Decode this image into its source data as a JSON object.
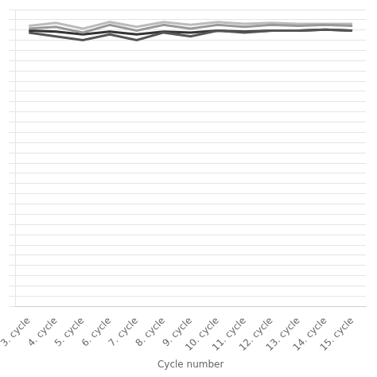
{
  "chart_data": {
    "type": "line",
    "x_label": "Cycle number",
    "categories": [
      "3. cycle",
      "4. cycle",
      "5. cycle",
      "6. cycle",
      "7. cycle",
      "8. cycle",
      "9. cycle",
      "10. cycle",
      "11. cycle",
      "12. cycle",
      "13. cycle",
      "14. cycle",
      "15. cycle"
    ],
    "series": [
      {
        "color": "#999999",
        "values": [
          99.5,
          99.6,
          99.3,
          99.7,
          99.4,
          99.7,
          99.5,
          99.7,
          99.6,
          99.7,
          99.65,
          99.7,
          99.65
        ]
      },
      {
        "color": "#555555",
        "values": [
          99.3,
          99.1,
          98.9,
          99.2,
          98.9,
          99.3,
          99.1,
          99.4,
          99.3,
          99.4,
          99.4,
          99.45,
          99.4
        ]
      },
      {
        "color": "#bbbbbb",
        "values": [
          99.65,
          99.8,
          99.5,
          99.85,
          99.6,
          99.85,
          99.7,
          99.85,
          99.75,
          99.8,
          99.75,
          99.75,
          99.75
        ]
      },
      {
        "color": "#333333",
        "values": [
          99.4,
          99.35,
          99.2,
          99.35,
          99.2,
          99.35,
          99.3,
          99.4,
          99.35,
          99.4,
          99.4,
          99.45,
          99.4
        ]
      }
    ],
    "ylim": [
      85.0,
      100.5
    ],
    "yticks": [
      85,
      85.53448275862068,
      86.06896551724138,
      86.60344827586206,
      87.13793103448276,
      87.67241379310344,
      88.20689655172414,
      88.74137931034483,
      89.27586206896552,
      89.8103448275862,
      90.3448275862069,
      90.87931034482759,
      91.41379310344827,
      91.94827586206897,
      92.48275862068965,
      93.01724137931035,
      93.55172413793103,
      94.08620689655172,
      94.62068965517241,
      95.1551724137931,
      95.6896551724138,
      96.22413793103448,
      96.75862068965517,
      97.29310344827586,
      97.82758620689656,
      98.36206896551724,
      98.89655172413794,
      99.43103448275862,
      99.96551724137932,
      100.5
    ],
    "grid": "y",
    "tick_labels": "x"
  }
}
